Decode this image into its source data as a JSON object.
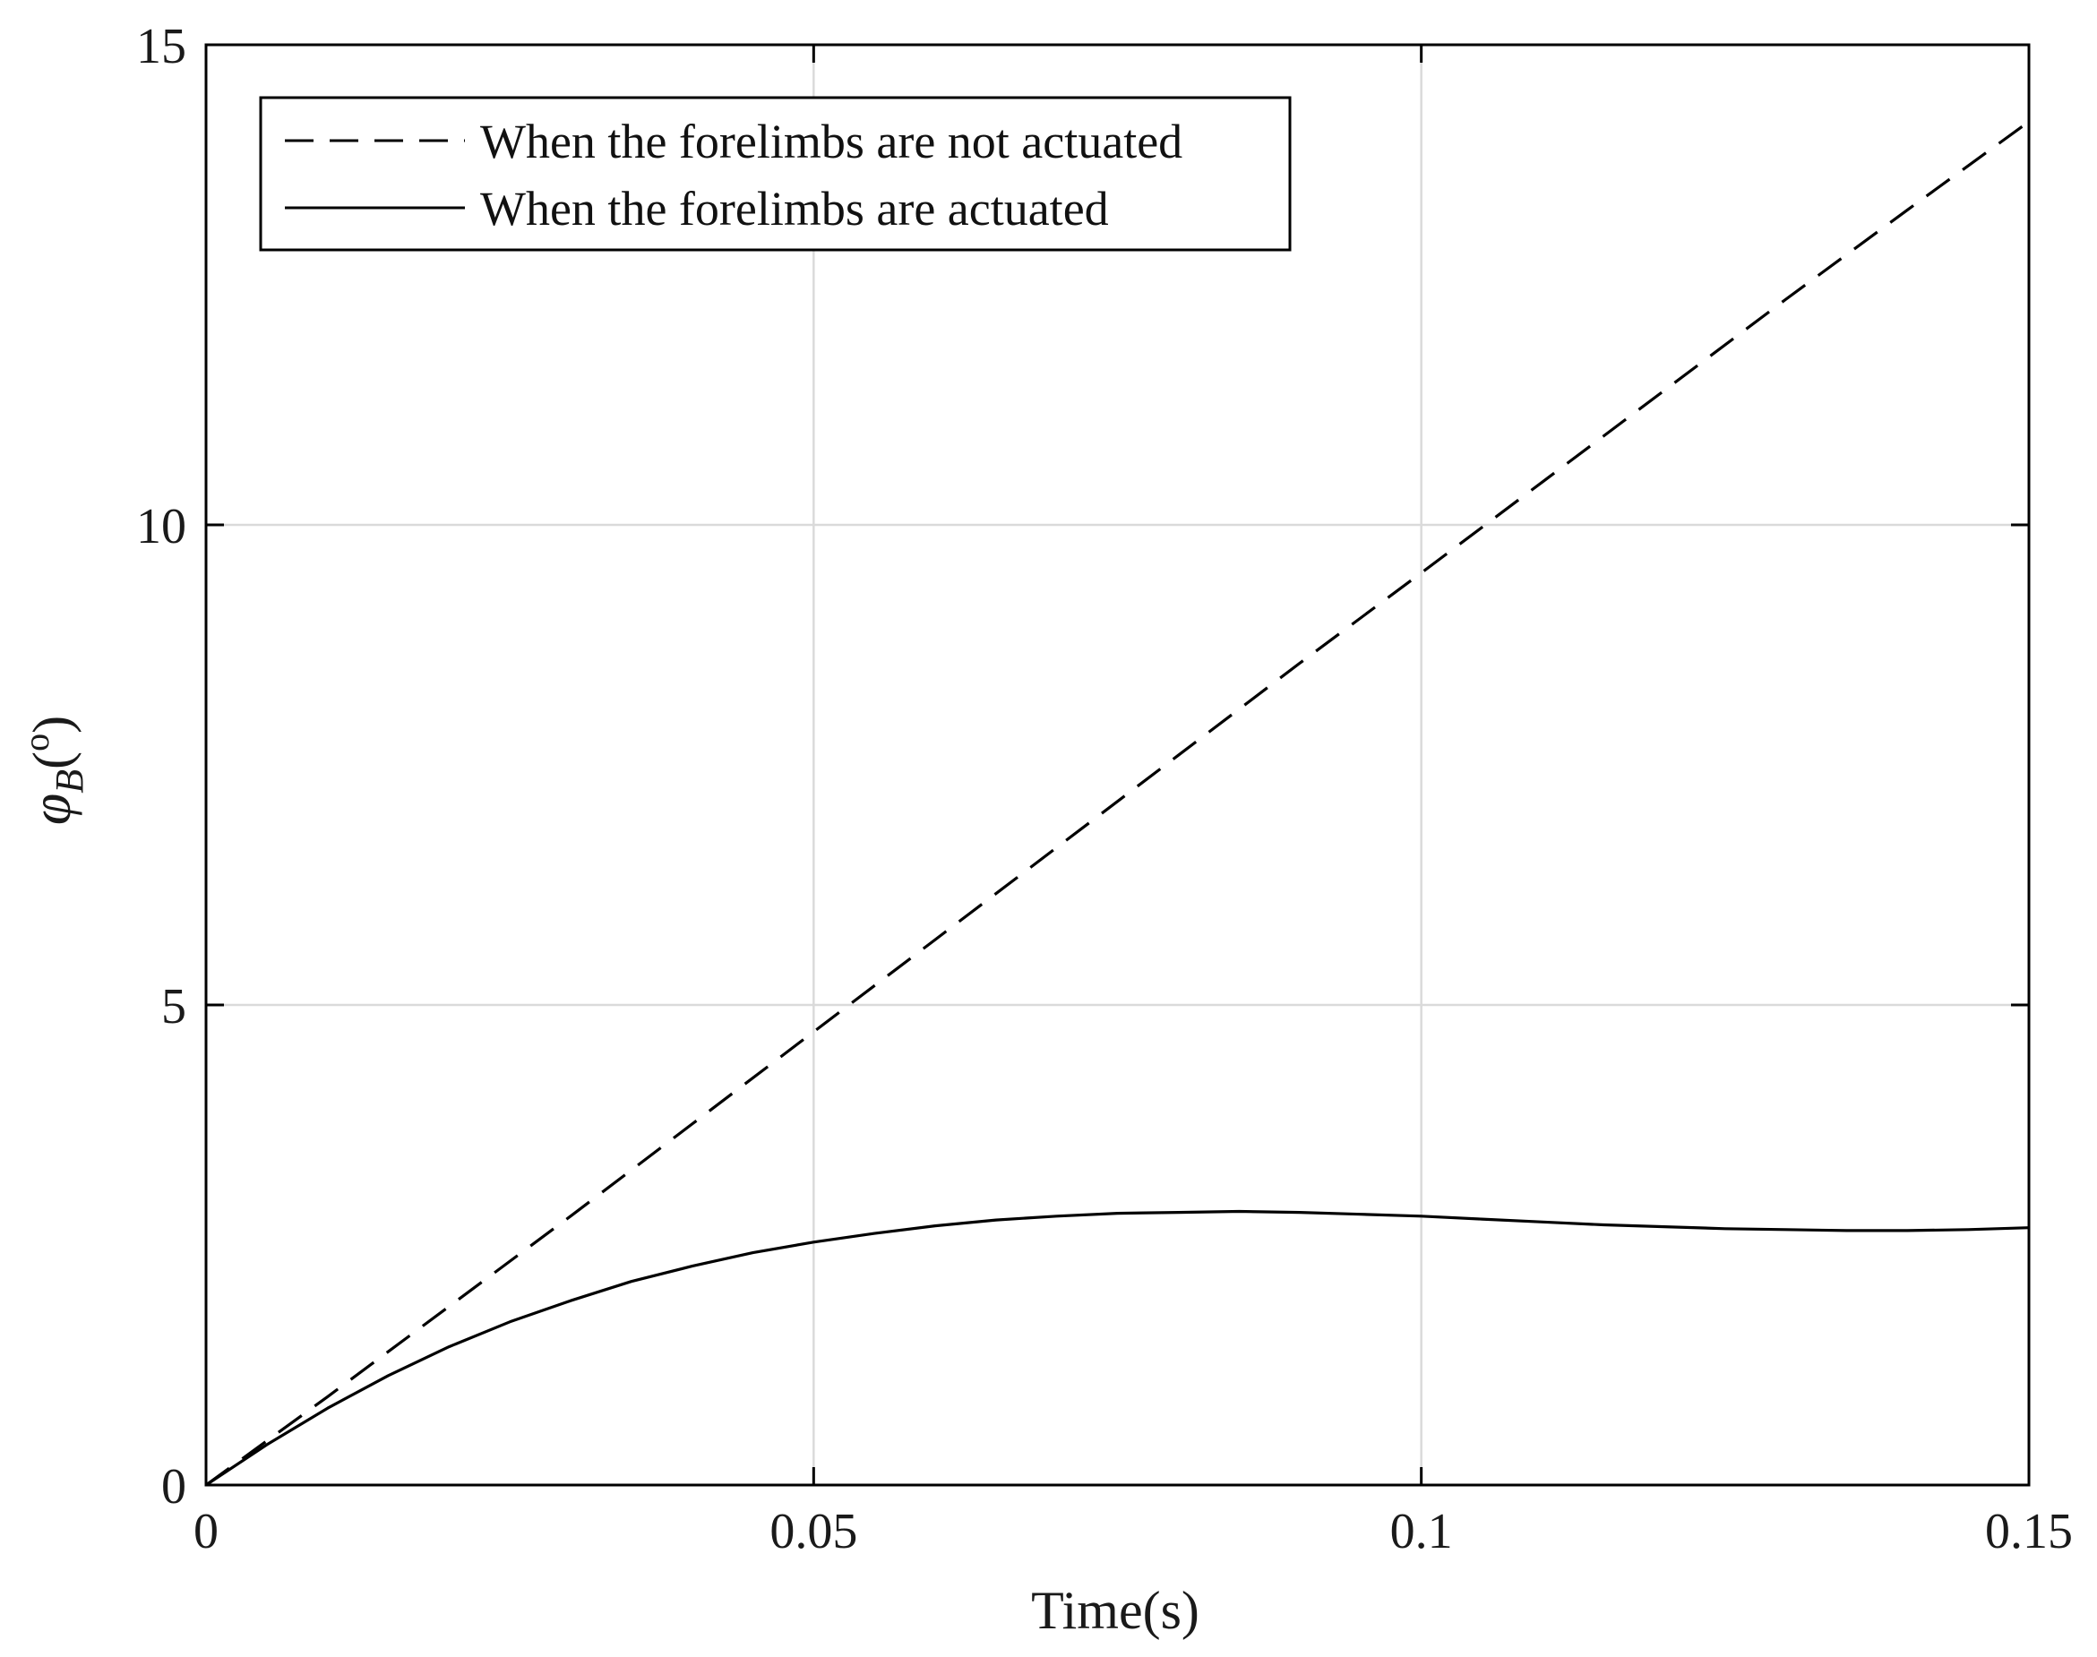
{
  "chart_data": {
    "type": "line",
    "title": "",
    "xlabel": "Time(s)",
    "ylabel": {
      "symbol": "φ",
      "subscript": "B",
      "open": "(",
      "superscript": "o",
      "close": ")"
    },
    "xlim": [
      0,
      0.15
    ],
    "ylim": [
      0,
      15
    ],
    "x_ticks": [
      0,
      0.05,
      0.1,
      0.15
    ],
    "x_tick_labels": [
      "0",
      "0.05",
      "0.1",
      "0.15"
    ],
    "y_ticks": [
      0,
      5,
      10,
      15
    ],
    "y_tick_labels": [
      "0",
      "5",
      "10",
      "15"
    ],
    "grid": true,
    "legend_position": "top-left",
    "series": [
      {
        "name": "When the forelimbs are not actuated",
        "style": "dashed",
        "color": "#000000",
        "x": [
          0,
          0.01,
          0.02,
          0.03,
          0.04,
          0.05,
          0.06,
          0.07,
          0.08,
          0.09,
          0.1,
          0.11,
          0.12,
          0.13,
          0.14,
          0.15
        ],
        "y": [
          0,
          0.92,
          1.86,
          2.8,
          3.76,
          4.72,
          5.68,
          6.64,
          7.6,
          8.56,
          9.5,
          10.45,
          11.4,
          12.35,
          13.28,
          14.2
        ]
      },
      {
        "name": "When the forelimbs are actuated",
        "style": "solid",
        "color": "#000000",
        "x": [
          0,
          0.005,
          0.01,
          0.015,
          0.02,
          0.025,
          0.03,
          0.035,
          0.04,
          0.045,
          0.05,
          0.055,
          0.06,
          0.065,
          0.07,
          0.075,
          0.08,
          0.085,
          0.09,
          0.095,
          0.1,
          0.105,
          0.11,
          0.115,
          0.12,
          0.125,
          0.13,
          0.135,
          0.14,
          0.145,
          0.15
        ],
        "y": [
          0,
          0.42,
          0.8,
          1.14,
          1.44,
          1.7,
          1.92,
          2.12,
          2.28,
          2.42,
          2.53,
          2.62,
          2.7,
          2.76,
          2.8,
          2.83,
          2.84,
          2.85,
          2.84,
          2.82,
          2.8,
          2.77,
          2.74,
          2.71,
          2.69,
          2.67,
          2.66,
          2.65,
          2.65,
          2.66,
          2.68
        ]
      }
    ]
  }
}
